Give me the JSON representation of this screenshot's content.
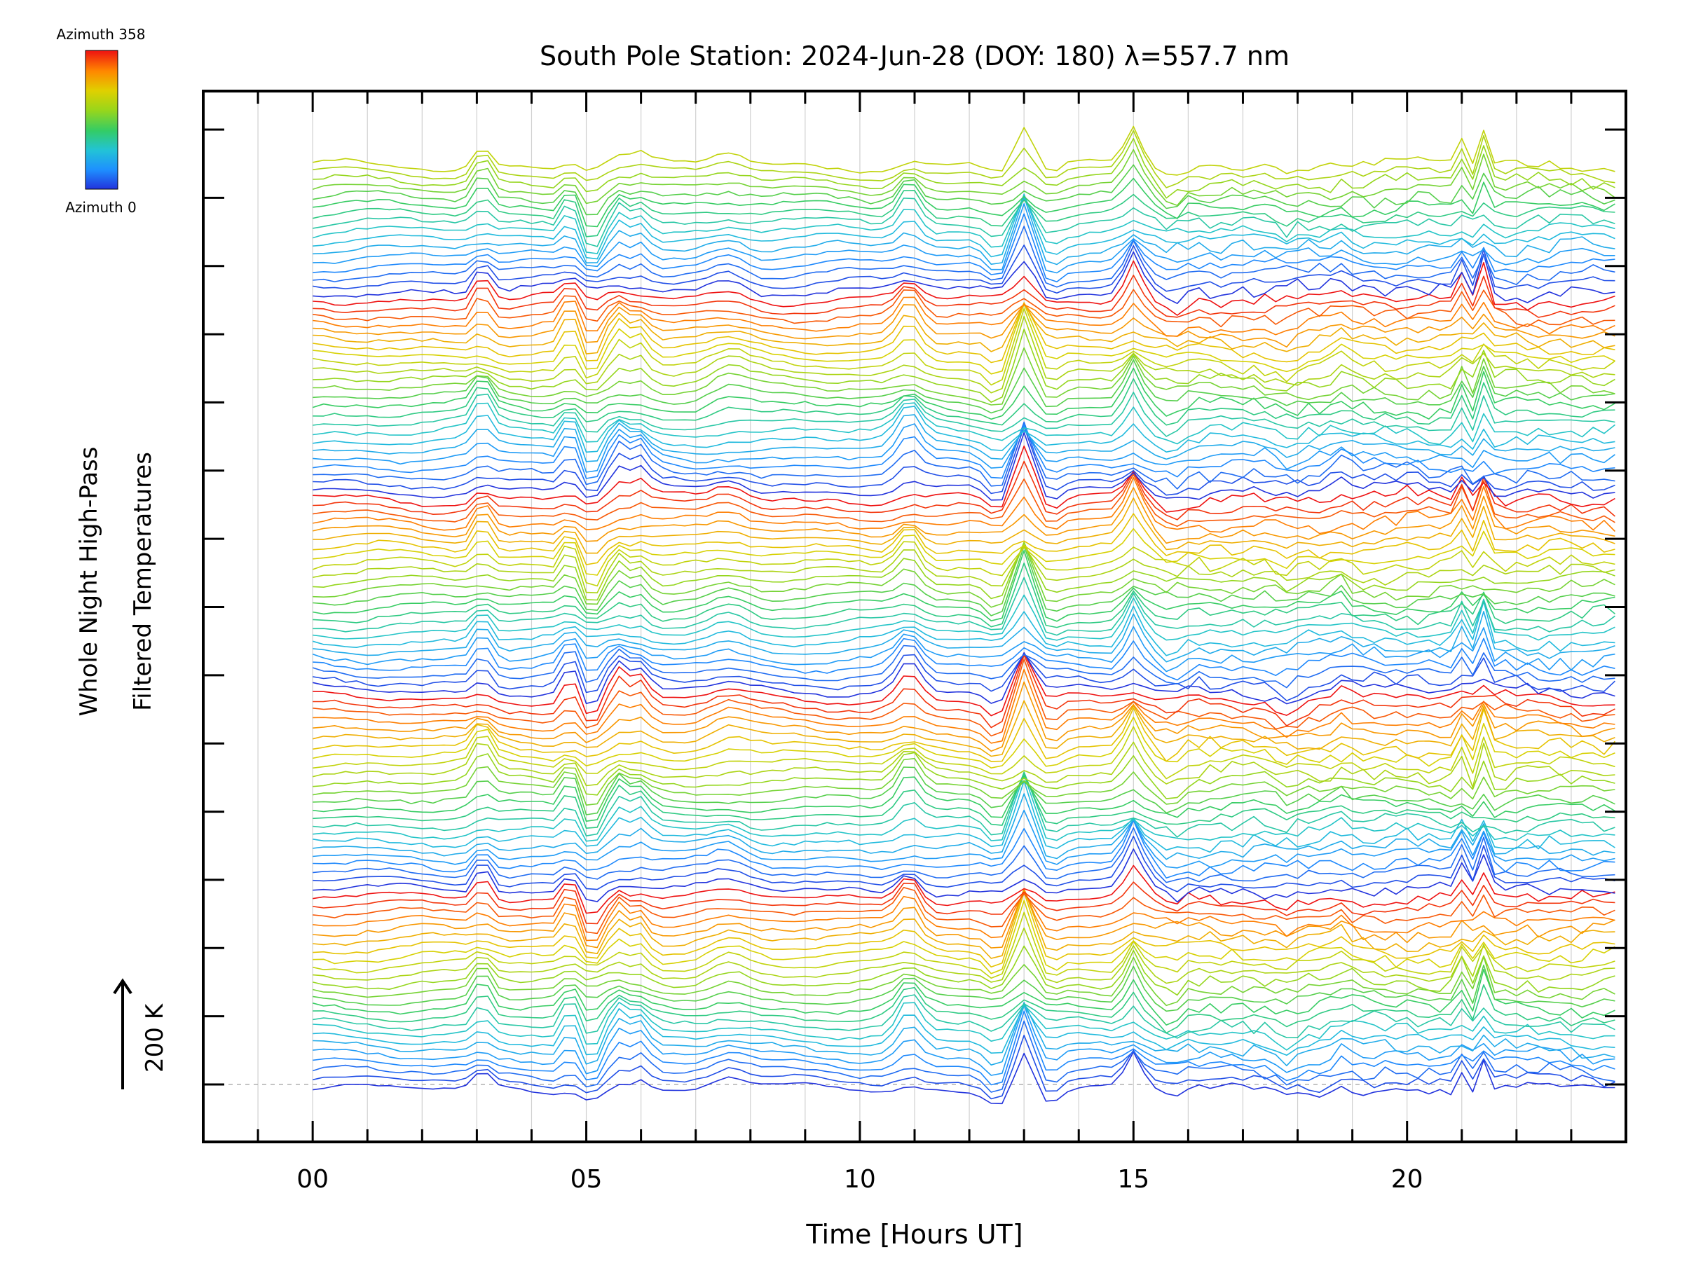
{
  "chart_data": {
    "type": "line",
    "title": "South Pole Station: 2024-Jun-28 (DOY: 180) λ=557.7 nm",
    "xlabel": "Time [Hours UT]",
    "ylabel_line1": "Whole Night High-Pass",
    "ylabel_line2": "Filtered Temperatures",
    "xlim": [
      -2,
      24
    ],
    "x_ticks": [
      0,
      5,
      10,
      15,
      20
    ],
    "x_tick_labels": [
      "00",
      "05",
      "10",
      "15",
      "20"
    ],
    "x_minor_tick_step": 1,
    "y_tick_count": 15,
    "scale_bar_label": "200 K",
    "colorbar": {
      "top_label": "Azimuth 358",
      "bottom_label": "Azimuth 0",
      "min": 0,
      "max": 358
    },
    "data_start_hour": 0,
    "data_end_hour": 23.8,
    "data_step_hours": 0.2,
    "n_traces": 112,
    "traces_per_cycle": 24,
    "peak_events": [
      {
        "t": 3.1,
        "amp": 34,
        "w": 0.14
      },
      {
        "t": 4.7,
        "amp": 42,
        "w": 0.09
      },
      {
        "t": 5.1,
        "amp": -26,
        "w": 0.12
      },
      {
        "t": 5.6,
        "amp": 32,
        "w": 0.15
      },
      {
        "t": 6.0,
        "amp": 26,
        "w": 0.14
      },
      {
        "t": 7.6,
        "amp": 16,
        "w": 0.3
      },
      {
        "t": 10.9,
        "amp": 38,
        "w": 0.2
      },
      {
        "t": 12.5,
        "amp": -22,
        "w": 0.18
      },
      {
        "t": 13.0,
        "amp": 68,
        "w": 0.16
      },
      {
        "t": 13.5,
        "amp": -14,
        "w": 0.16
      },
      {
        "t": 15.0,
        "amp": 48,
        "w": 0.15
      },
      {
        "t": 15.7,
        "amp": -16,
        "w": 0.14
      },
      {
        "t": 17.8,
        "amp": -12,
        "w": 0.16
      },
      {
        "t": 18.8,
        "amp": 14,
        "w": 0.14
      },
      {
        "t": 21.1,
        "amp": 52,
        "w": 0.09
      },
      {
        "t": 21.4,
        "amp": 46,
        "w": 0.08
      },
      {
        "t": 21.25,
        "amp": -40,
        "w": 0.07
      }
    ],
    "colors": {
      "frame": "#000000",
      "grid": "#d0d0d0",
      "baseline": "#b0b0b0",
      "colormap": [
        "#2233dd",
        "#1e90ff",
        "#22c3d6",
        "#33cc66",
        "#99d61a",
        "#e0d000",
        "#ff8800",
        "#ee1111"
      ]
    }
  }
}
